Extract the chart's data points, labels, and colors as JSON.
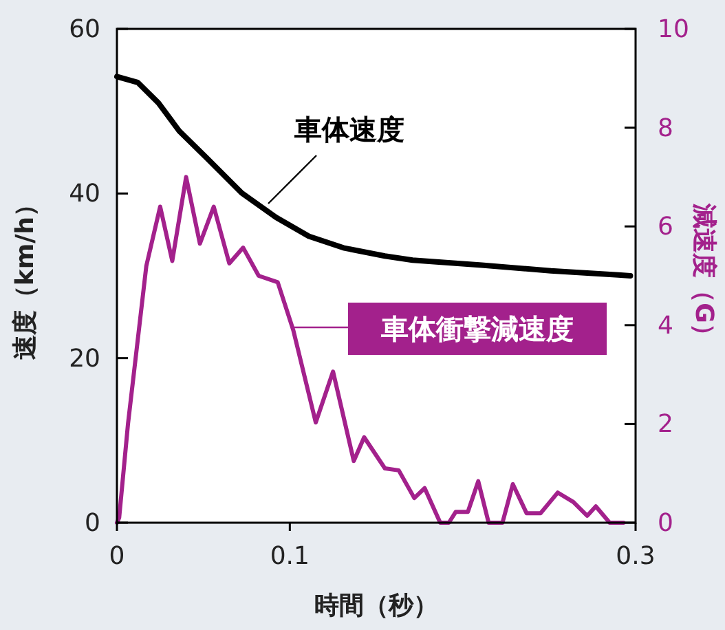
{
  "chart_data": {
    "type": "line",
    "xlabel": "時間（秒）",
    "ylabel": "速度（km/h）",
    "y2label": "減速度（G）",
    "xlim": [
      0,
      0.3
    ],
    "xticks": [
      0,
      0.1,
      0.3
    ],
    "ylim": [
      0,
      60
    ],
    "yticks": [
      0,
      20,
      40,
      60
    ],
    "y2lim": [
      0,
      10
    ],
    "y2ticks": [
      0,
      2,
      4,
      6,
      8,
      10
    ],
    "grid": false,
    "legend": "right",
    "marker": "none",
    "line_style": "solid",
    "series": [
      {
        "name": "車体速度",
        "color": "#000000",
        "axis": "y",
        "x": [
          0,
          0.012,
          0.024,
          0.036,
          0.052,
          0.072,
          0.092,
          0.111,
          0.131,
          0.155,
          0.171,
          0.211,
          0.251,
          0.29,
          0.297
        ],
        "values": [
          54.2,
          53.5,
          51,
          47.6,
          44.3,
          40.1,
          37.1,
          34.8,
          33.4,
          32.4,
          31.9,
          31.3,
          30.6,
          30.1,
          30
        ]
      },
      {
        "name": "車体衝撃減速度",
        "color": "#a3218c",
        "axis": "y2",
        "x": [
          0,
          0.0013,
          0.0064,
          0.017,
          0.025,
          0.032,
          0.04,
          0.048,
          0.056,
          0.065,
          0.073,
          0.082,
          0.093,
          0.102,
          0.115,
          0.125,
          0.137,
          0.143,
          0.155,
          0.163,
          0.172,
          0.178,
          0.187,
          0.192,
          0.196,
          0.203,
          0.209,
          0.215,
          0.223,
          0.229,
          0.237,
          0.245,
          0.255,
          0.264,
          0.272,
          0.277,
          0.285,
          0.293
        ],
        "values": [
          0,
          0.1,
          2.0,
          5.2,
          6.4,
          5.3,
          7.0,
          5.65,
          6.4,
          5.25,
          5.57,
          5.0,
          4.87,
          3.9,
          2.03,
          3.06,
          1.25,
          1.73,
          1.1,
          1.06,
          0.5,
          0.7,
          0,
          0,
          0.22,
          0.22,
          0.84,
          0,
          0,
          0.78,
          0.19,
          0.19,
          0.61,
          0.42,
          0.14,
          0.33,
          0,
          0
        ]
      }
    ]
  }
}
